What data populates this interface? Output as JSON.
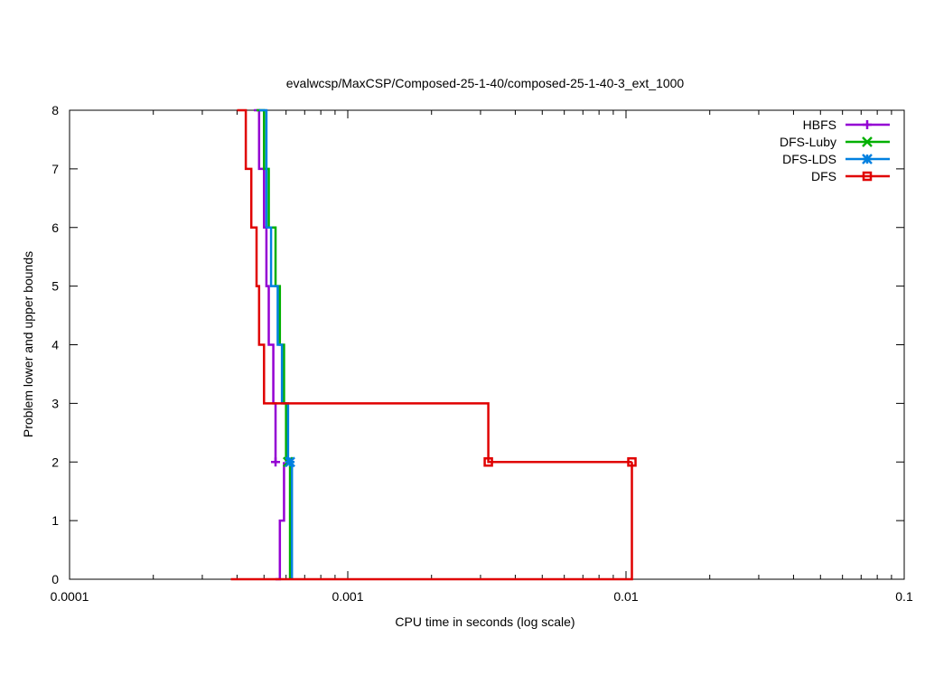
{
  "chart_data": {
    "type": "line",
    "title": "evalwcsp/MaxCSP/Composed-25-1-40/composed-25-1-40-3_ext_1000",
    "xlabel": "CPU time in seconds (log scale)",
    "ylabel": "Problem lower and upper bounds",
    "xscale": "log",
    "xlim": [
      0.0001,
      0.1
    ],
    "ylim": [
      0,
      8
    ],
    "xticks": [
      {
        "value": 0.0001,
        "label": "0.0001"
      },
      {
        "value": 0.001,
        "label": "0.001"
      },
      {
        "value": 0.01,
        "label": "0.01"
      },
      {
        "value": 0.1,
        "label": "0.1"
      }
    ],
    "yticks": [
      {
        "value": 0,
        "label": "0"
      },
      {
        "value": 1,
        "label": "1"
      },
      {
        "value": 2,
        "label": "2"
      },
      {
        "value": 3,
        "label": "3"
      },
      {
        "value": 4,
        "label": "4"
      },
      {
        "value": 5,
        "label": "5"
      },
      {
        "value": 6,
        "label": "6"
      },
      {
        "value": 7,
        "label": "7"
      },
      {
        "value": 8,
        "label": "8"
      }
    ],
    "grid": false,
    "legend_position": "top-right",
    "series": [
      {
        "name": "HBFS",
        "color": "#9400d3",
        "marker": "plus",
        "upper": [
          [
            0.00046,
            8
          ],
          [
            0.00048,
            7
          ],
          [
            0.0005,
            6
          ],
          [
            0.00051,
            5
          ],
          [
            0.00052,
            4
          ],
          [
            0.00054,
            3
          ],
          [
            0.00055,
            2
          ]
        ],
        "lower": [
          [
            0.00055,
            0
          ],
          [
            0.00057,
            1
          ],
          [
            0.00059,
            2
          ]
        ],
        "markers": [
          [
            0.00055,
            2
          ]
        ]
      },
      {
        "name": "DFS-Luby",
        "color": "#00b000",
        "marker": "x",
        "upper": [
          [
            0.00047,
            8
          ],
          [
            0.0005,
            7
          ],
          [
            0.00052,
            6
          ],
          [
            0.00055,
            5
          ],
          [
            0.00057,
            4
          ],
          [
            0.00059,
            3
          ],
          [
            0.0006,
            2
          ]
        ],
        "lower": [
          [
            0.00062,
            0
          ],
          [
            0.00062,
            2
          ]
        ],
        "markers": [
          [
            0.00061,
            2
          ]
        ]
      },
      {
        "name": "DFS-LDS",
        "color": "#0080e0",
        "marker": "star",
        "upper": [
          [
            0.00048,
            8
          ],
          [
            0.00051,
            6
          ],
          [
            0.00053,
            5
          ],
          [
            0.00056,
            4
          ],
          [
            0.00058,
            3
          ],
          [
            0.00061,
            2
          ]
        ],
        "lower": [
          [
            0.00063,
            0
          ],
          [
            0.00063,
            2
          ]
        ],
        "markers": [
          [
            0.00062,
            2
          ]
        ]
      },
      {
        "name": "DFS",
        "color": "#e00000",
        "marker": "square",
        "upper": [
          [
            0.0004,
            8
          ],
          [
            0.00043,
            7
          ],
          [
            0.00045,
            6
          ],
          [
            0.00047,
            5
          ],
          [
            0.00048,
            4
          ],
          [
            0.0005,
            3
          ],
          [
            0.0032,
            2
          ],
          [
            0.0105,
            2
          ]
        ],
        "lower": [
          [
            0.00038,
            0
          ],
          [
            0.0105,
            0
          ],
          [
            0.0105,
            2
          ]
        ],
        "markers": [
          [
            0.0032,
            2
          ],
          [
            0.0105,
            2
          ]
        ]
      }
    ]
  }
}
